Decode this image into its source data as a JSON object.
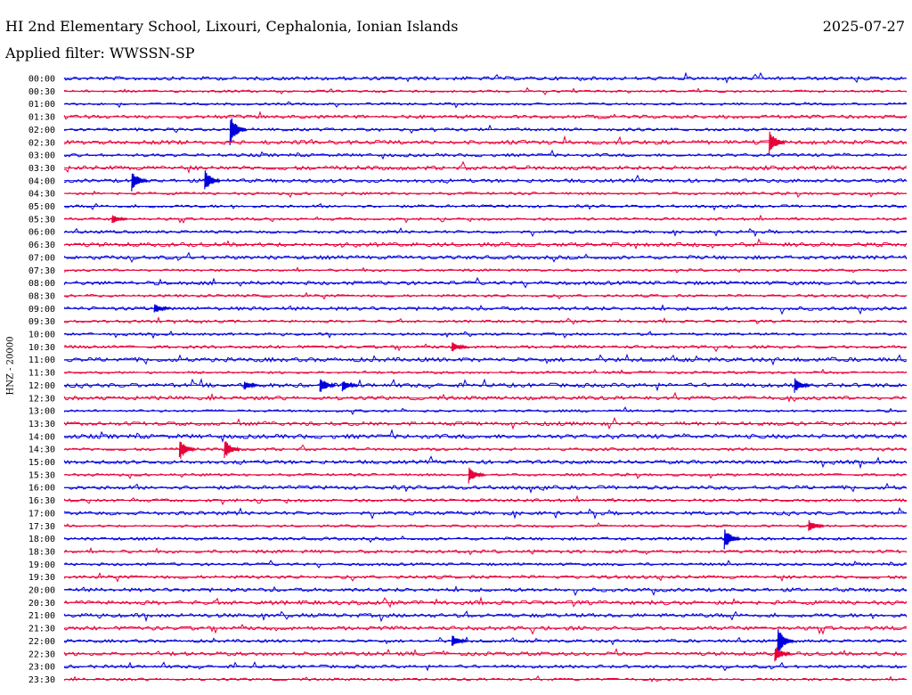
{
  "header": {
    "station_title": "HI 2nd Elementary School, Lixouri, Cephalonia, Ionian Islands",
    "date": "2025-07-27",
    "filter": "Applied filter: WWSSN-SP"
  },
  "chart_data": {
    "type": "line",
    "title": "HI 2nd Elementary School, Lixouri, Cephalonia, Ionian Islands",
    "subtitle": "Applied filter: WWSSN-SP",
    "ylabel": "HNZ - 20000",
    "xlabel": "",
    "categories": [
      "00:00",
      "00:30",
      "01:00",
      "01:30",
      "02:00",
      "02:30",
      "03:00",
      "03:30",
      "04:00",
      "04:30",
      "05:00",
      "05:30",
      "06:00",
      "06:30",
      "07:00",
      "07:30",
      "08:00",
      "08:30",
      "09:00",
      "09:30",
      "10:00",
      "10:30",
      "11:00",
      "11:30",
      "12:00",
      "12:30",
      "13:00",
      "13:30",
      "14:00",
      "14:30",
      "15:00",
      "15:30",
      "16:00",
      "16:30",
      "17:00",
      "17:30",
      "18:00",
      "18:30",
      "19:00",
      "19:30",
      "20:00",
      "20:30",
      "21:00",
      "21:30",
      "22:00",
      "22:30",
      "23:00",
      "23:30"
    ],
    "series_colors": [
      "#0000dd",
      "#e8003a"
    ],
    "events": [
      {
        "line": "02:00",
        "minute": 6.0,
        "amp": 18
      },
      {
        "line": "02:30",
        "minute": 25.2,
        "amp": 14
      },
      {
        "line": "04:00",
        "minute": 2.5,
        "amp": 12
      },
      {
        "line": "04:00",
        "minute": 5.1,
        "amp": 13
      },
      {
        "line": "05:30",
        "minute": 1.8,
        "amp": 6
      },
      {
        "line": "09:00",
        "minute": 3.3,
        "amp": 6
      },
      {
        "line": "10:30",
        "minute": 13.9,
        "amp": 7
      },
      {
        "line": "12:00",
        "minute": 6.5,
        "amp": 6
      },
      {
        "line": "12:00",
        "minute": 9.2,
        "amp": 10
      },
      {
        "line": "12:00",
        "minute": 10.0,
        "amp": 7
      },
      {
        "line": "12:00",
        "minute": 26.1,
        "amp": 9
      },
      {
        "line": "14:30",
        "minute": 4.2,
        "amp": 13
      },
      {
        "line": "14:30",
        "minute": 5.8,
        "amp": 12
      },
      {
        "line": "15:30",
        "minute": 14.5,
        "amp": 10
      },
      {
        "line": "17:30",
        "minute": 26.6,
        "amp": 8
      },
      {
        "line": "18:00",
        "minute": 23.6,
        "amp": 13
      },
      {
        "line": "22:00",
        "minute": 13.9,
        "amp": 8
      },
      {
        "line": "22:00",
        "minute": 25.5,
        "amp": 16
      },
      {
        "line": "22:30",
        "minute": 25.4,
        "amp": 10
      }
    ]
  }
}
